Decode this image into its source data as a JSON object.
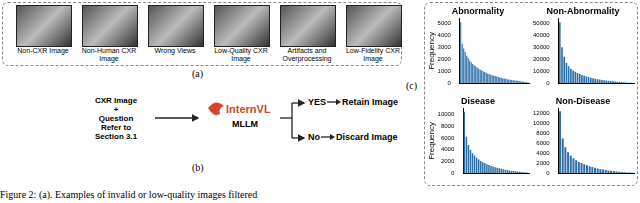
{
  "panel_a": {
    "label": "(a)",
    "images": [
      "Non-CXR Image",
      "Non-Human CXR Image",
      "Wrong Views",
      "Low-Quality CXR Image",
      "Artifacts and Overprocessing",
      "Low-Fidelity CXR Image"
    ]
  },
  "panel_b": {
    "label": "(b)",
    "input": [
      "CXR Image",
      "+",
      "Question",
      "Refer to",
      "Section 3.1"
    ],
    "model": "InternVL",
    "model_type": "MLLM",
    "outputs": [
      {
        "answer": "YES",
        "result": "Retain Image"
      },
      {
        "answer": "No",
        "result": "Discard Image"
      }
    ]
  },
  "panel_c": {
    "label": "(c)"
  },
  "chart_data": [
    {
      "type": "bar",
      "title": "Abnormality",
      "y_label": "Frequency",
      "categories": [
        null,
        null,
        null,
        null,
        null,
        null,
        null,
        null,
        null,
        null,
        null,
        null,
        null,
        null,
        null,
        null,
        null,
        null,
        null,
        null,
        null,
        null,
        null,
        null,
        null,
        null,
        null,
        null,
        null,
        null,
        null,
        null,
        null,
        null,
        null,
        null,
        null,
        null,
        null,
        null,
        null,
        null,
        null,
        null,
        null,
        null
      ],
      "values": [
        5100,
        3300,
        2900,
        2600,
        2300,
        2100,
        1900,
        1750,
        1600,
        1500,
        1400,
        1300,
        1200,
        1120,
        1050,
        980,
        920,
        860,
        800,
        750,
        700,
        660,
        620,
        580,
        540,
        500,
        470,
        440,
        410,
        380,
        350,
        320,
        300,
        280,
        260,
        240,
        220,
        200,
        180,
        160,
        140,
        120,
        100,
        80,
        60,
        40
      ],
      "color": "#2f6fa8",
      "ylim": [
        0,
        5400
      ],
      "yticks": [
        0,
        1000,
        2000,
        3000,
        4000,
        5000
      ],
      "grid": false,
      "tick_labels": "y"
    },
    {
      "type": "bar",
      "title": "Non-Abnormality",
      "categories": [
        null,
        null,
        null,
        null,
        null,
        null,
        null,
        null,
        null,
        null,
        null,
        null,
        null,
        null,
        null,
        null,
        null,
        null,
        null,
        null,
        null,
        null,
        null,
        null,
        null,
        null,
        null,
        null,
        null,
        null,
        null,
        null,
        null,
        null
      ],
      "values": [
        51000,
        30000,
        22000,
        17000,
        14000,
        12000,
        10500,
        9500,
        8500,
        7600,
        6800,
        6100,
        5500,
        5000,
        4500,
        4000,
        3600,
        3200,
        2900,
        2600,
        2300,
        2000,
        1800,
        1600,
        1400,
        1200,
        1000,
        850,
        700,
        550,
        400,
        300,
        200,
        100
      ],
      "color": "#2f6fa8",
      "ylim": [
        0,
        54000
      ],
      "yticks": [
        0,
        10000,
        20000,
        30000,
        40000,
        50000
      ],
      "grid": false,
      "tick_labels": "y"
    },
    {
      "type": "bar",
      "title": "Disease",
      "y_label": "Frequency",
      "categories": [
        null,
        null,
        null,
        null,
        null,
        null,
        null,
        null,
        null,
        null,
        null,
        null,
        null,
        null,
        null,
        null,
        null,
        null,
        null,
        null,
        null,
        null,
        null,
        null,
        null,
        null,
        null,
        null,
        null,
        null,
        null,
        null
      ],
      "values": [
        10500,
        6200,
        4800,
        4000,
        3400,
        3000,
        2600,
        2300,
        2050,
        1850,
        1650,
        1500,
        1350,
        1200,
        1100,
        1000,
        900,
        800,
        720,
        640,
        570,
        500,
        440,
        380,
        330,
        280,
        240,
        200,
        160,
        120,
        90,
        60
      ],
      "color": "#2f6fa8",
      "ylim": [
        0,
        11000
      ],
      "yticks": [
        0,
        2000,
        4000,
        6000,
        8000,
        10000
      ],
      "grid": false,
      "tick_labels": "y"
    },
    {
      "type": "bar",
      "title": "Non-Disease",
      "categories": [
        null,
        null,
        null,
        null,
        null,
        null,
        null,
        null,
        null,
        null,
        null,
        null,
        null,
        null,
        null,
        null,
        null,
        null,
        null,
        null,
        null,
        null,
        null,
        null,
        null,
        null,
        null,
        null
      ],
      "values": [
        12500,
        7000,
        5200,
        4200,
        3500,
        3000,
        2600,
        2250,
        2000,
        1750,
        1550,
        1350,
        1200,
        1050,
        920,
        800,
        700,
        600,
        520,
        450,
        380,
        320,
        260,
        210,
        160,
        120,
        80,
        50
      ],
      "color": "#2f6fa8",
      "ylim": [
        0,
        13000
      ],
      "yticks": [
        0,
        2000,
        4000,
        6000,
        8000,
        10000,
        12000
      ],
      "grid": false,
      "tick_labels": "y"
    }
  ],
  "caption": "Figure 2: (a). Examples of invalid or low-quality images filtered"
}
